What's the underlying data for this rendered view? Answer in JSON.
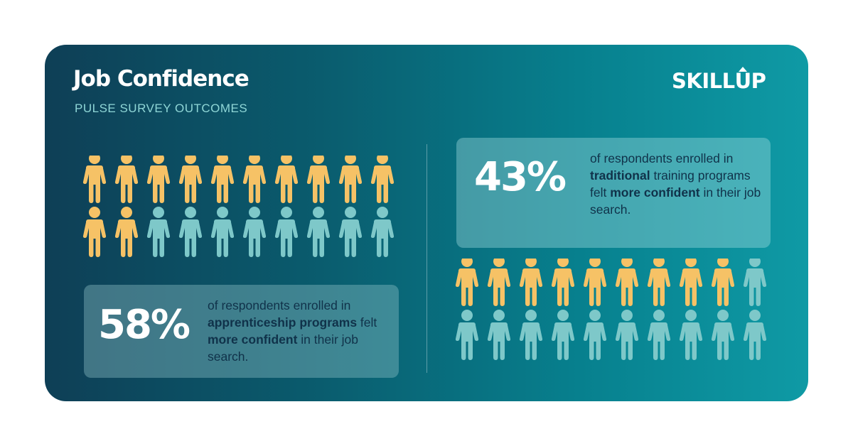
{
  "header": {
    "title": "Job Confidence",
    "subtitle": "PULSE SURVEY OUTCOMES",
    "logo": "SKILLUP"
  },
  "colors": {
    "highlight": "#f6c266",
    "base": "#7ec8c9",
    "text_dark": "#10324a"
  },
  "stats": {
    "apprenticeship": {
      "value": "58%",
      "text_1": "of respondents enrolled in ",
      "bold_1": "apprenticeship programs",
      "text_2": " felt ",
      "bold_2": "more confident",
      "text_3": " in their job search."
    },
    "traditional": {
      "value": "43%",
      "text_1": "of respondents enrolled in ",
      "bold_1": "traditional",
      "text_2": " training programs felt ",
      "bold_2": "more confident",
      "text_3": " in their job search."
    }
  },
  "chart_data": [
    {
      "type": "pictograph",
      "total_icons": 20,
      "highlighted_icons": 12,
      "percent": 58
    },
    {
      "type": "pictograph",
      "total_icons": 20,
      "highlighted_icons": 9,
      "percent": 43
    }
  ]
}
